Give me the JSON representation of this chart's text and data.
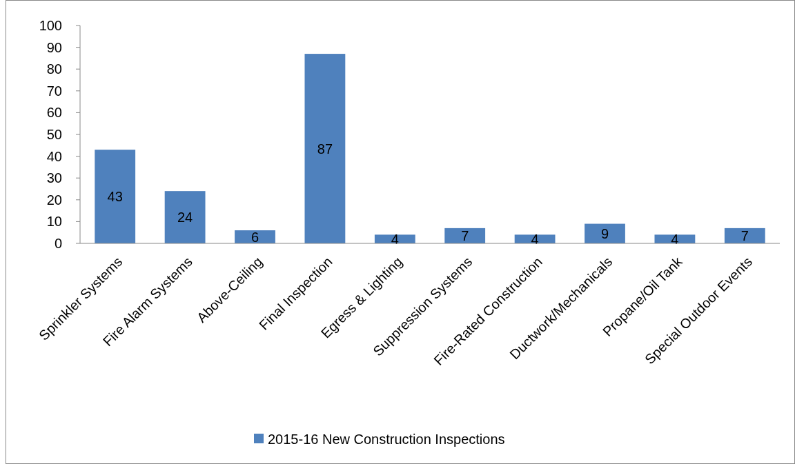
{
  "chart_data": {
    "type": "bar",
    "categories": [
      "Sprinkler Systems",
      "Fire Alarm Systems",
      "Above-Ceiling",
      "Final Inspection",
      "Egress & Lighting",
      "Suppression Systems",
      "Fire-Rated Construction",
      "Ductwork/Mechanicals",
      "Propane/Oil Tank",
      "Special Outdoor Events"
    ],
    "series": [
      {
        "name": "2015-16 New Construction Inspections",
        "color": "#4f81bd",
        "values": [
          43,
          24,
          6,
          87,
          4,
          7,
          4,
          9,
          4,
          7
        ]
      }
    ],
    "ylim": [
      0,
      100
    ],
    "yticks": [
      0,
      10,
      20,
      30,
      40,
      50,
      60,
      70,
      80,
      90,
      100
    ],
    "grid": false,
    "legend": "bottom",
    "data_labels": true
  }
}
